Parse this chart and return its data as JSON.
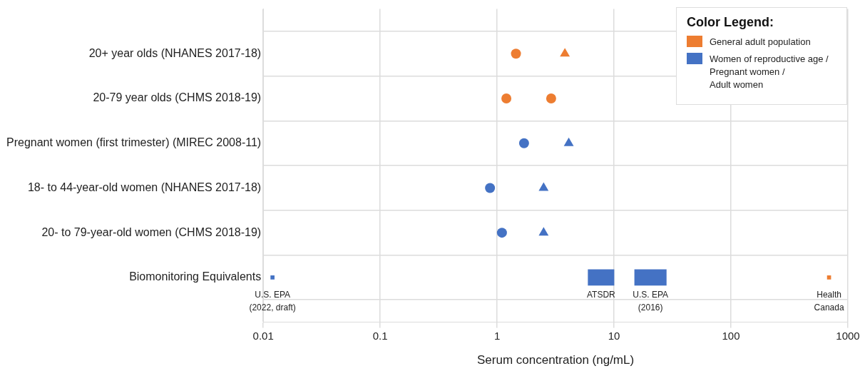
{
  "chart_data": {
    "type": "scatter",
    "orientation": "horizontal",
    "xlabel": "Serum concentration (ng/mL)",
    "legend_title": "Color Legend:",
    "categories": [
      "20+ year olds (NHANES 2017-18)",
      "20-79 year olds (CHMS 2018-19)",
      "Pregnant women (first trimester) (MIREC 2008-11)",
      "18- to 44-year-old women (NHANES 2017-18)",
      "20- to 79-year-old women (CHMS 2018-19)",
      "Biomonitoring Equivalents"
    ],
    "log": "x",
    "xlim": [
      0.01,
      1000
    ],
    "xticks": [
      0.01,
      0.1,
      1,
      10,
      100,
      1000
    ],
    "grid": true,
    "legend": "top right",
    "series": [
      {
        "name": "General adult population",
        "color": "#ed7d31",
        "marker": "circle",
        "values": [
          1.45,
          1.2,
          null,
          null,
          null,
          null
        ]
      },
      {
        "color": "#ed7d31",
        "marker": "circle",
        "values": [
          null,
          2.9,
          null,
          null,
          null,
          null
        ]
      },
      {
        "color": "#ed7d31",
        "marker": "triangle",
        "values": [
          3.8,
          null,
          null,
          null,
          null,
          null
        ]
      },
      {
        "name": "Women of reproductive age / Pregnant women / Adult women",
        "color": "#4472c4",
        "marker": "circle",
        "values": [
          null,
          null,
          1.7,
          0.87,
          1.1,
          null
        ]
      },
      {
        "color": "#4472c4",
        "marker": "triangle",
        "values": [
          null,
          null,
          4.1,
          2.5,
          2.5,
          null
        ]
      },
      {
        "type": "bar",
        "color": "#4472c4",
        "base": [
          null,
          null,
          null,
          null,
          null,
          6
        ],
        "values": [
          null,
          null,
          null,
          null,
          null,
          4
        ]
      },
      {
        "type": "bar",
        "color": "#4472c4",
        "base": [
          null,
          null,
          null,
          null,
          null,
          15
        ],
        "values": [
          null,
          null,
          null,
          null,
          null,
          13
        ]
      },
      {
        "color": "#4472c4",
        "marker": "square",
        "values": [
          null,
          null,
          null,
          null,
          null,
          0.012
        ]
      },
      {
        "color": "#ed7d31",
        "marker": "square",
        "values": [
          null,
          null,
          null,
          null,
          null,
          690
        ]
      }
    ],
    "annotations": [
      {
        "text": "U.S. EPA\n(2022, draft)",
        "x": 0.012,
        "y": "Biomonitoring Equivalents"
      },
      {
        "text": "ATSDR",
        "x": 6,
        "y": "Biomonitoring Equivalents"
      },
      {
        "text": "U.S. EPA\n(2016)",
        "x": 15,
        "y": "Biomonitoring Equivalents"
      },
      {
        "text": "Health\nCanada",
        "x": 690,
        "y": "Biomonitoring Equivalents"
      }
    ]
  }
}
